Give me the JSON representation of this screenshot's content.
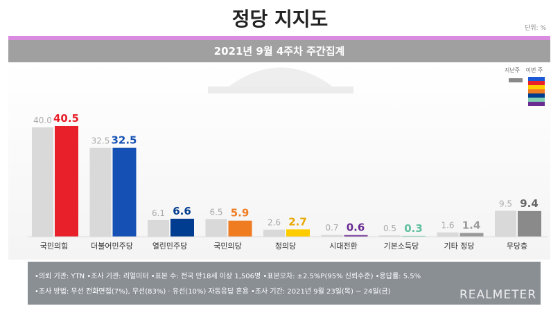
{
  "title": "정당 지지도",
  "unit": "단위: %",
  "subtitle": "2021년 9월 4주차 주간집계",
  "legend": {
    "last_week": "지난주",
    "this_week": "이번 주",
    "colors": [
      "#1a5ad6",
      "#e8202a",
      "#ffcc00",
      "#f07c22",
      "#003c8f",
      "#80d0b4",
      "#6a2c91"
    ]
  },
  "footer": {
    "line1": "•의뢰 기관: YTN •조사 기관: 리얼미터 •표본 수: 전국 만18세 이상 1,506명 •표본오차: ±2.5%P(95% 신뢰수준) •응답률: 5.5%",
    "line2": "•조사 방법: 무선 전화면접(7%), 무선(83%) · 유선(10%) 자동응답 혼용  •조사 기간: 2021년 9월 23일(목) ~ 24일(금)",
    "logo": "REALMETER"
  },
  "chart_data": {
    "type": "bar",
    "title": "2021년 9월 4주차 주간집계",
    "categories": [
      "국민의힘",
      "더불어민주당",
      "열린민주당",
      "국민의당",
      "정의당",
      "시대전환",
      "기본소득당",
      "기타 정당",
      "무당층"
    ],
    "series": [
      {
        "name": "지난주",
        "values": [
          40.0,
          32.5,
          6.1,
          6.5,
          2.6,
          0.7,
          0.5,
          1.6,
          9.5
        ],
        "color": "#d9d9d9"
      },
      {
        "name": "이번 주",
        "values": [
          40.5,
          32.5,
          6.6,
          5.9,
          2.7,
          0.6,
          0.3,
          1.4,
          9.4
        ],
        "colors": [
          "#e8202a",
          "#1550b4",
          "#003c8f",
          "#f07c22",
          "#ffcc00",
          "#6a2c91",
          "#80d0b4",
          "#9a9a9a",
          "#8a8a8a"
        ],
        "label_colors": [
          "#e8202a",
          "#1550b4",
          "#003c8f",
          "#f07c22",
          "#e8a800",
          "#6a2c91",
          "#5fc0a0",
          "#9a9a9a",
          "#666666"
        ]
      }
    ],
    "ylim": [
      0,
      42
    ],
    "unit": "%"
  }
}
